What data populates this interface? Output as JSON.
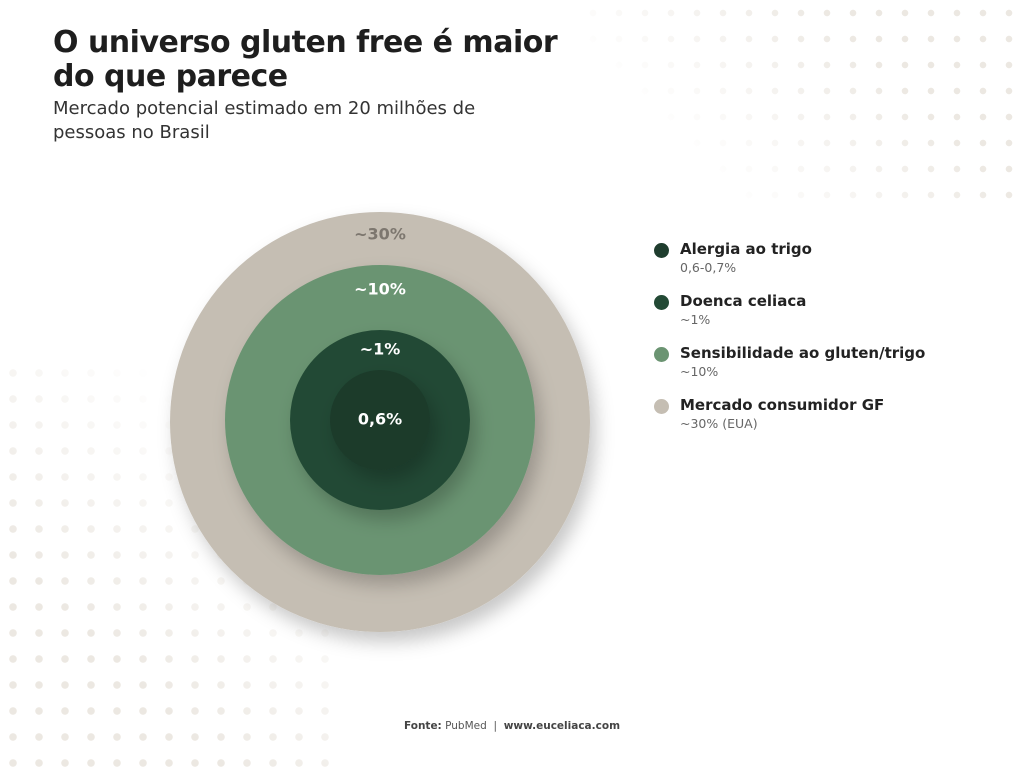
{
  "header": {
    "title": "O universo gluten free é maior do que parece",
    "subtitle": "Mercado potencial estimado em 20 milhões de pessoas no Brasil"
  },
  "circles": [
    {
      "label": "~30%"
    },
    {
      "label": "~10%"
    },
    {
      "label": "~1%"
    },
    {
      "label": "0,6%"
    }
  ],
  "legend": [
    {
      "name": "Alergia ao trigo",
      "detail": "0,6-0,7%"
    },
    {
      "name": "Doenca celiaca",
      "detail": "~1%"
    },
    {
      "name": "Sensibilidade ao gluten/trigo",
      "detail": "~10%"
    },
    {
      "name": "Mercado consumidor GF",
      "detail": "~30% (EUA)"
    }
  ],
  "footer": {
    "source_label": "Fonte:",
    "source": "PubMed",
    "separator": "|",
    "site": "www.euceliaca.com"
  }
}
